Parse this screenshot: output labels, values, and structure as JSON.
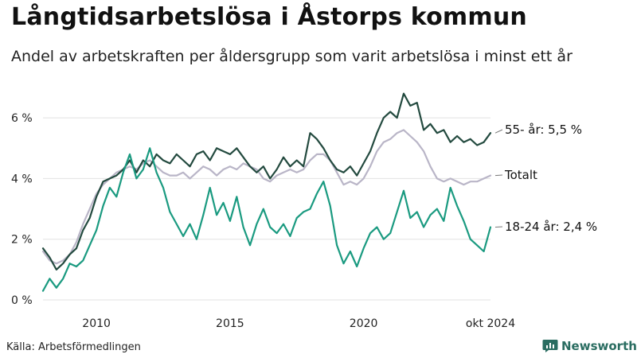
{
  "header": {
    "title": "Långtidsarbetslösa i Åstorps kommun",
    "subtitle": "Andel av arbetskraften per åldersgrupp som varit arbetslösa i minst ett år"
  },
  "footer": {
    "source": "Källa: Arbetsförmedlingen",
    "brand": "Newsworthy"
  },
  "colors": {
    "series_55": "#234a3f",
    "series_total": "#b9b5c7",
    "series_18_24": "#1a9a80",
    "grid": "#e2e2e2",
    "axis_text": "#222222",
    "brand": "#2a6d61"
  },
  "chart_data": {
    "type": "line",
    "title": "",
    "xlabel": "",
    "ylabel": "",
    "x_range": [
      "2008-01",
      "2024-10"
    ],
    "ylim": [
      0,
      7
    ],
    "grid": "horizontal",
    "y_ticks": [
      {
        "value": 0,
        "label": "0 %"
      },
      {
        "value": 2,
        "label": "2 %"
      },
      {
        "value": 4,
        "label": "4 %"
      },
      {
        "value": 6,
        "label": "6 %"
      }
    ],
    "x_ticks": [
      {
        "value": "2010-01",
        "label": "2010"
      },
      {
        "value": "2015-01",
        "label": "2015"
      },
      {
        "value": "2020-01",
        "label": "2020"
      },
      {
        "value": "2024-10",
        "label": "okt 2024"
      }
    ],
    "series": [
      {
        "name": "Totalt",
        "label": "Totalt",
        "color": "#b9b5c7",
        "points": [
          [
            "2008-01",
            1.6
          ],
          [
            "2008-04",
            1.3
          ],
          [
            "2008-07",
            1.2
          ],
          [
            "2008-10",
            1.3
          ],
          [
            "2009-01",
            1.5
          ],
          [
            "2009-04",
            1.9
          ],
          [
            "2009-07",
            2.5
          ],
          [
            "2009-10",
            3.0
          ],
          [
            "2010-01",
            3.5
          ],
          [
            "2010-04",
            3.8
          ],
          [
            "2010-07",
            4.0
          ],
          [
            "2010-10",
            4.2
          ],
          [
            "2011-01",
            4.3
          ],
          [
            "2011-04",
            4.4
          ],
          [
            "2011-07",
            4.3
          ],
          [
            "2011-10",
            4.5
          ],
          [
            "2012-01",
            4.6
          ],
          [
            "2012-04",
            4.4
          ],
          [
            "2012-07",
            4.2
          ],
          [
            "2012-10",
            4.1
          ],
          [
            "2013-01",
            4.1
          ],
          [
            "2013-04",
            4.2
          ],
          [
            "2013-07",
            4.0
          ],
          [
            "2013-10",
            4.2
          ],
          [
            "2014-01",
            4.4
          ],
          [
            "2014-04",
            4.3
          ],
          [
            "2014-07",
            4.1
          ],
          [
            "2014-10",
            4.3
          ],
          [
            "2015-01",
            4.4
          ],
          [
            "2015-04",
            4.3
          ],
          [
            "2015-07",
            4.5
          ],
          [
            "2015-10",
            4.4
          ],
          [
            "2016-01",
            4.3
          ],
          [
            "2016-04",
            4.0
          ],
          [
            "2016-07",
            3.9
          ],
          [
            "2016-10",
            4.1
          ],
          [
            "2017-01",
            4.2
          ],
          [
            "2017-04",
            4.3
          ],
          [
            "2017-07",
            4.2
          ],
          [
            "2017-10",
            4.3
          ],
          [
            "2018-01",
            4.6
          ],
          [
            "2018-04",
            4.8
          ],
          [
            "2018-07",
            4.8
          ],
          [
            "2018-10",
            4.6
          ],
          [
            "2019-01",
            4.2
          ],
          [
            "2019-04",
            3.8
          ],
          [
            "2019-07",
            3.9
          ],
          [
            "2019-10",
            3.8
          ],
          [
            "2020-01",
            4.0
          ],
          [
            "2020-04",
            4.4
          ],
          [
            "2020-07",
            4.9
          ],
          [
            "2020-10",
            5.2
          ],
          [
            "2021-01",
            5.3
          ],
          [
            "2021-04",
            5.5
          ],
          [
            "2021-07",
            5.6
          ],
          [
            "2021-10",
            5.4
          ],
          [
            "2022-01",
            5.2
          ],
          [
            "2022-04",
            4.9
          ],
          [
            "2022-07",
            4.4
          ],
          [
            "2022-10",
            4.0
          ],
          [
            "2023-01",
            3.9
          ],
          [
            "2023-04",
            4.0
          ],
          [
            "2023-07",
            3.9
          ],
          [
            "2023-10",
            3.8
          ],
          [
            "2024-01",
            3.9
          ],
          [
            "2024-04",
            3.9
          ],
          [
            "2024-07",
            4.0
          ],
          [
            "2024-10",
            4.1
          ]
        ]
      },
      {
        "name": "55- år",
        "label": "55- år: 5,5 %",
        "color": "#234a3f",
        "points": [
          [
            "2008-01",
            1.7
          ],
          [
            "2008-04",
            1.4
          ],
          [
            "2008-07",
            1.0
          ],
          [
            "2008-10",
            1.2
          ],
          [
            "2009-01",
            1.5
          ],
          [
            "2009-04",
            1.7
          ],
          [
            "2009-07",
            2.3
          ],
          [
            "2009-10",
            2.7
          ],
          [
            "2010-01",
            3.4
          ],
          [
            "2010-04",
            3.9
          ],
          [
            "2010-07",
            4.0
          ],
          [
            "2010-10",
            4.1
          ],
          [
            "2011-01",
            4.3
          ],
          [
            "2011-04",
            4.6
          ],
          [
            "2011-07",
            4.2
          ],
          [
            "2011-10",
            4.6
          ],
          [
            "2012-01",
            4.4
          ],
          [
            "2012-04",
            4.8
          ],
          [
            "2012-07",
            4.6
          ],
          [
            "2012-10",
            4.5
          ],
          [
            "2013-01",
            4.8
          ],
          [
            "2013-04",
            4.6
          ],
          [
            "2013-07",
            4.4
          ],
          [
            "2013-10",
            4.8
          ],
          [
            "2014-01",
            4.9
          ],
          [
            "2014-04",
            4.6
          ],
          [
            "2014-07",
            5.0
          ],
          [
            "2014-10",
            4.9
          ],
          [
            "2015-01",
            4.8
          ],
          [
            "2015-04",
            5.0
          ],
          [
            "2015-07",
            4.7
          ],
          [
            "2015-10",
            4.4
          ],
          [
            "2016-01",
            4.2
          ],
          [
            "2016-04",
            4.4
          ],
          [
            "2016-07",
            4.0
          ],
          [
            "2016-10",
            4.3
          ],
          [
            "2017-01",
            4.7
          ],
          [
            "2017-04",
            4.4
          ],
          [
            "2017-07",
            4.6
          ],
          [
            "2017-10",
            4.4
          ],
          [
            "2018-01",
            5.5
          ],
          [
            "2018-04",
            5.3
          ],
          [
            "2018-07",
            5.0
          ],
          [
            "2018-10",
            4.6
          ],
          [
            "2019-01",
            4.3
          ],
          [
            "2019-04",
            4.2
          ],
          [
            "2019-07",
            4.4
          ],
          [
            "2019-10",
            4.1
          ],
          [
            "2020-01",
            4.5
          ],
          [
            "2020-04",
            4.9
          ],
          [
            "2020-07",
            5.5
          ],
          [
            "2020-10",
            6.0
          ],
          [
            "2021-01",
            6.2
          ],
          [
            "2021-04",
            6.0
          ],
          [
            "2021-07",
            6.8
          ],
          [
            "2021-10",
            6.4
          ],
          [
            "2022-01",
            6.5
          ],
          [
            "2022-04",
            5.6
          ],
          [
            "2022-07",
            5.8
          ],
          [
            "2022-10",
            5.5
          ],
          [
            "2023-01",
            5.6
          ],
          [
            "2023-04",
            5.2
          ],
          [
            "2023-07",
            5.4
          ],
          [
            "2023-10",
            5.2
          ],
          [
            "2024-01",
            5.3
          ],
          [
            "2024-04",
            5.1
          ],
          [
            "2024-07",
            5.2
          ],
          [
            "2024-10",
            5.5
          ]
        ]
      },
      {
        "name": "18-24 år",
        "label": "18-24 år: 2,4 %",
        "color": "#1a9a80",
        "points": [
          [
            "2008-01",
            0.3
          ],
          [
            "2008-04",
            0.7
          ],
          [
            "2008-07",
            0.4
          ],
          [
            "2008-10",
            0.7
          ],
          [
            "2009-01",
            1.2
          ],
          [
            "2009-04",
            1.1
          ],
          [
            "2009-07",
            1.3
          ],
          [
            "2009-10",
            1.8
          ],
          [
            "2010-01",
            2.3
          ],
          [
            "2010-04",
            3.1
          ],
          [
            "2010-07",
            3.7
          ],
          [
            "2010-10",
            3.4
          ],
          [
            "2011-01",
            4.2
          ],
          [
            "2011-04",
            4.8
          ],
          [
            "2011-07",
            4.0
          ],
          [
            "2011-10",
            4.3
          ],
          [
            "2012-01",
            5.0
          ],
          [
            "2012-04",
            4.2
          ],
          [
            "2012-07",
            3.7
          ],
          [
            "2012-10",
            2.9
          ],
          [
            "2013-01",
            2.5
          ],
          [
            "2013-04",
            2.1
          ],
          [
            "2013-07",
            2.5
          ],
          [
            "2013-10",
            2.0
          ],
          [
            "2014-01",
            2.8
          ],
          [
            "2014-04",
            3.7
          ],
          [
            "2014-07",
            2.8
          ],
          [
            "2014-10",
            3.2
          ],
          [
            "2015-01",
            2.6
          ],
          [
            "2015-04",
            3.4
          ],
          [
            "2015-07",
            2.4
          ],
          [
            "2015-10",
            1.8
          ],
          [
            "2016-01",
            2.5
          ],
          [
            "2016-04",
            3.0
          ],
          [
            "2016-07",
            2.4
          ],
          [
            "2016-10",
            2.2
          ],
          [
            "2017-01",
            2.5
          ],
          [
            "2017-04",
            2.1
          ],
          [
            "2017-07",
            2.7
          ],
          [
            "2017-10",
            2.9
          ],
          [
            "2018-01",
            3.0
          ],
          [
            "2018-04",
            3.5
          ],
          [
            "2018-07",
            3.9
          ],
          [
            "2018-10",
            3.1
          ],
          [
            "2019-01",
            1.8
          ],
          [
            "2019-04",
            1.2
          ],
          [
            "2019-07",
            1.6
          ],
          [
            "2019-10",
            1.1
          ],
          [
            "2020-01",
            1.7
          ],
          [
            "2020-04",
            2.2
          ],
          [
            "2020-07",
            2.4
          ],
          [
            "2020-10",
            2.0
          ],
          [
            "2021-01",
            2.2
          ],
          [
            "2021-04",
            2.9
          ],
          [
            "2021-07",
            3.6
          ],
          [
            "2021-10",
            2.7
          ],
          [
            "2022-01",
            2.9
          ],
          [
            "2022-04",
            2.4
          ],
          [
            "2022-07",
            2.8
          ],
          [
            "2022-10",
            3.0
          ],
          [
            "2023-01",
            2.6
          ],
          [
            "2023-04",
            3.7
          ],
          [
            "2023-07",
            3.1
          ],
          [
            "2023-10",
            2.6
          ],
          [
            "2024-01",
            2.0
          ],
          [
            "2024-04",
            1.8
          ],
          [
            "2024-07",
            1.6
          ],
          [
            "2024-10",
            2.4
          ]
        ]
      }
    ]
  }
}
